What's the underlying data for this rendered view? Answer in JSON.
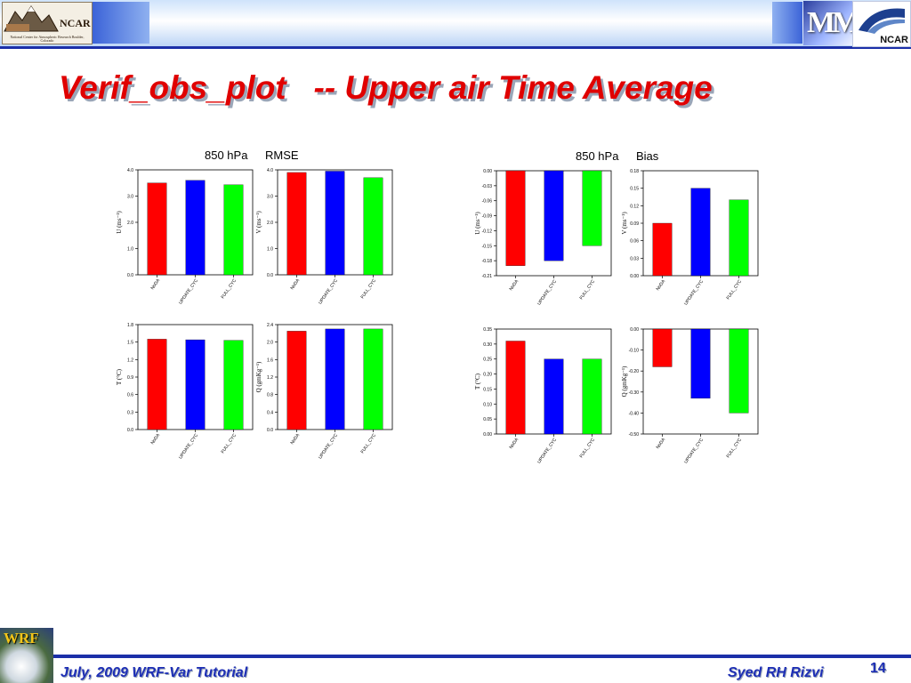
{
  "header": {
    "logo_left_text": "NCAR",
    "logo_left_sub": "National Center for Atmospheric Research Boulder, Colorado",
    "logo_right_text": "NCAR",
    "mm_logo_text": "MM"
  },
  "title": "Verif_obs_plot   -- Upper air Time Average",
  "footer": {
    "left": "July, 2009 WRF-Var Tutorial",
    "right": "Syed RH Rizvi",
    "page": "14",
    "wrf_logo_text": "WRF"
  },
  "colors": {
    "NoDA": "#ff0000",
    "UPDATE_CYC": "#0000ff",
    "FULL_CYC": "#00ff00"
  },
  "panels": [
    {
      "level": "850 hPa",
      "stat": "RMSE"
    },
    {
      "level": "850 hPa",
      "stat": "Bias"
    }
  ],
  "chart_data": [
    {
      "type": "bar",
      "panel": "RMSE",
      "ylabel": "U (ms⁻¹)",
      "categories": [
        "NoDA",
        "UPDATE_CYC",
        "FULL_CYC"
      ],
      "values": [
        3.5,
        3.6,
        3.43
      ],
      "ylim": [
        0,
        4
      ],
      "yticks": [
        "0.0",
        "1.0",
        "2.0",
        "3.0",
        "4.0"
      ]
    },
    {
      "type": "bar",
      "panel": "RMSE",
      "ylabel": "V (ms⁻¹)",
      "categories": [
        "NoDA",
        "UPDATE_CYC",
        "FULL_CYC"
      ],
      "values": [
        3.9,
        3.95,
        3.7
      ],
      "ylim": [
        0,
        4
      ],
      "yticks": [
        "0.0",
        "1.0",
        "2.0",
        "3.0",
        "4.0"
      ]
    },
    {
      "type": "bar",
      "panel": "RMSE",
      "ylabel": "T (°C)",
      "categories": [
        "NoDA",
        "UPDATE_CYC",
        "FULL_CYC"
      ],
      "values": [
        1.55,
        1.54,
        1.53
      ],
      "ylim": [
        0,
        1.8
      ],
      "yticks": [
        "0.0",
        "0.3",
        "0.6",
        "0.9",
        "1.2",
        "1.5",
        "1.8"
      ]
    },
    {
      "type": "bar",
      "panel": "RMSE",
      "ylabel": "Q (gmKg⁻¹)",
      "categories": [
        "NoDA",
        "UPDATE_CYC",
        "FULL_CYC"
      ],
      "values": [
        2.25,
        2.3,
        2.3
      ],
      "ylim": [
        0,
        2.4
      ],
      "yticks": [
        "0.0",
        "0.4",
        "0.8",
        "1.2",
        "1.6",
        "2.0",
        "2.4"
      ]
    },
    {
      "type": "bar",
      "panel": "Bias",
      "ylabel": "U (ms⁻¹)",
      "categories": [
        "NoDA",
        "UPDATE_CYC",
        "FULL_CYC"
      ],
      "values": [
        -0.19,
        -0.18,
        -0.15
      ],
      "ylim": [
        -0.21,
        0
      ],
      "yticks": [
        "-0.21",
        "-0.18",
        "-0.15",
        "-0.12",
        "-0.09",
        "-0.06",
        "-0.03",
        "0.00"
      ]
    },
    {
      "type": "bar",
      "panel": "Bias",
      "ylabel": "V (ms⁻¹)",
      "categories": [
        "NoDA",
        "UPDATE_CYC",
        "FULL_CYC"
      ],
      "values": [
        0.09,
        0.15,
        0.13
      ],
      "ylim": [
        0,
        0.18
      ],
      "yticks": [
        "0.00",
        "0.03",
        "0.06",
        "0.09",
        "0.12",
        "0.15",
        "0.18"
      ]
    },
    {
      "type": "bar",
      "panel": "Bias",
      "ylabel": "T (°C)",
      "categories": [
        "NoDA",
        "UPDATE_CYC",
        "FULL_CYC"
      ],
      "values": [
        0.31,
        0.25,
        0.25
      ],
      "ylim": [
        0,
        0.35
      ],
      "yticks": [
        "0.00",
        "0.05",
        "0.10",
        "0.15",
        "0.20",
        "0.25",
        "0.30",
        "0.35"
      ]
    },
    {
      "type": "bar",
      "panel": "Bias",
      "ylabel": "Q (gmKg⁻¹)",
      "categories": [
        "NoDA",
        "UPDATE_CYC",
        "FULL_CYC"
      ],
      "values": [
        -0.18,
        -0.33,
        -0.4
      ],
      "ylim": [
        -0.5,
        0
      ],
      "yticks": [
        "-0.50",
        "-0.40",
        "-0.30",
        "-0.20",
        "-0.10",
        "0.00"
      ]
    }
  ]
}
